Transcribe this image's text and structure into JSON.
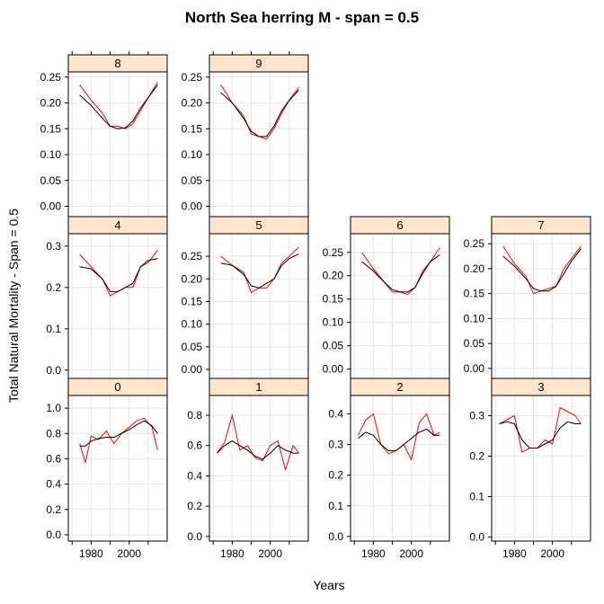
{
  "chart_data": {
    "type": "line",
    "title": "North Sea herring M - span = 0.5",
    "xlabel": "Years",
    "ylabel": "Total Natural Mortality - Span = 0.5",
    "x_ticks": [
      "1980",
      "2000"
    ],
    "grid": true,
    "colors": {
      "observed": "#ff0000",
      "smooth": "#000000",
      "strip": "#ffe5cc",
      "grid": "#e6e6e6"
    },
    "series_descriptions": [
      "observed (red)",
      "loess smooth (black)"
    ],
    "panels": [
      {
        "label": "8",
        "ylim": [
          -0.02,
          0.26
        ],
        "y_ticks": [
          "0.00",
          "0.05",
          "0.10",
          "0.15",
          "0.20",
          "0.25"
        ],
        "x": [
          1974,
          1980,
          1986,
          1990,
          1994,
          1998,
          2002,
          2006,
          2010,
          2015
        ],
        "observed": [
          0.235,
          0.205,
          0.18,
          0.155,
          0.155,
          0.15,
          0.16,
          0.185,
          0.21,
          0.24
        ],
        "smooth": [
          0.215,
          0.195,
          0.17,
          0.155,
          0.15,
          0.152,
          0.165,
          0.19,
          0.21,
          0.235
        ]
      },
      {
        "label": "9",
        "ylim": [
          -0.02,
          0.26
        ],
        "y_ticks": [
          "0.00",
          "0.05",
          "0.10",
          "0.15",
          "0.20",
          "0.25"
        ],
        "x": [
          1974,
          1980,
          1986,
          1990,
          1994,
          1998,
          2002,
          2006,
          2010,
          2015
        ],
        "observed": [
          0.235,
          0.2,
          0.175,
          0.14,
          0.135,
          0.13,
          0.15,
          0.18,
          0.205,
          0.23
        ],
        "smooth": [
          0.22,
          0.2,
          0.17,
          0.145,
          0.135,
          0.135,
          0.155,
          0.185,
          0.205,
          0.225
        ]
      },
      {
        "label": "4",
        "ylim": [
          -0.02,
          0.33
        ],
        "y_ticks": [
          "0.0",
          "0.1",
          "0.2",
          "0.3"
        ],
        "x": [
          1974,
          1980,
          1986,
          1990,
          1994,
          1998,
          2002,
          2006,
          2010,
          2015
        ],
        "observed": [
          0.28,
          0.25,
          0.22,
          0.18,
          0.19,
          0.2,
          0.2,
          0.25,
          0.26,
          0.29
        ],
        "smooth": [
          0.25,
          0.245,
          0.22,
          0.19,
          0.19,
          0.2,
          0.21,
          0.25,
          0.265,
          0.27
        ]
      },
      {
        "label": "5",
        "ylim": [
          -0.02,
          0.3
        ],
        "y_ticks": [
          "0.00",
          "0.05",
          "0.10",
          "0.15",
          "0.20",
          "0.25"
        ],
        "x": [
          1974,
          1980,
          1986,
          1990,
          1994,
          1998,
          2002,
          2006,
          2010,
          2015
        ],
        "observed": [
          0.25,
          0.23,
          0.215,
          0.17,
          0.18,
          0.18,
          0.2,
          0.235,
          0.25,
          0.27
        ],
        "smooth": [
          0.235,
          0.23,
          0.21,
          0.185,
          0.18,
          0.19,
          0.2,
          0.23,
          0.245,
          0.255
        ]
      },
      {
        "label": "6",
        "ylim": [
          -0.02,
          0.29
        ],
        "y_ticks": [
          "0.00",
          "0.05",
          "0.10",
          "0.15",
          "0.20",
          "0.25"
        ],
        "x": [
          1974,
          1980,
          1986,
          1990,
          1994,
          1998,
          2002,
          2006,
          2010,
          2015
        ],
        "observed": [
          0.25,
          0.215,
          0.185,
          0.165,
          0.165,
          0.16,
          0.175,
          0.21,
          0.23,
          0.26
        ],
        "smooth": [
          0.23,
          0.21,
          0.185,
          0.17,
          0.165,
          0.165,
          0.175,
          0.205,
          0.23,
          0.245
        ]
      },
      {
        "label": "7",
        "ylim": [
          -0.02,
          0.27
        ],
        "y_ticks": [
          "0.00",
          "0.05",
          "0.10",
          "0.15",
          "0.20",
          "0.25"
        ],
        "x": [
          1974,
          1980,
          1986,
          1990,
          1994,
          1998,
          2002,
          2006,
          2010,
          2015
        ],
        "observed": [
          0.245,
          0.21,
          0.185,
          0.15,
          0.155,
          0.16,
          0.165,
          0.2,
          0.22,
          0.245
        ],
        "smooth": [
          0.225,
          0.205,
          0.18,
          0.16,
          0.155,
          0.155,
          0.165,
          0.19,
          0.215,
          0.24
        ]
      },
      {
        "label": "0",
        "ylim": [
          -0.05,
          1.1
        ],
        "y_ticks": [
          "0.0",
          "0.2",
          "0.4",
          "0.6",
          "0.8",
          "1.0"
        ],
        "x": [
          1974,
          1977,
          1980,
          1984,
          1988,
          1992,
          1996,
          2000,
          2004,
          2008,
          2012,
          2015
        ],
        "observed": [
          0.72,
          0.57,
          0.78,
          0.75,
          0.82,
          0.72,
          0.8,
          0.85,
          0.9,
          0.92,
          0.85,
          0.67
        ],
        "smooth": [
          0.7,
          0.7,
          0.74,
          0.76,
          0.77,
          0.77,
          0.8,
          0.83,
          0.87,
          0.9,
          0.86,
          0.8
        ]
      },
      {
        "label": "1",
        "ylim": [
          -0.03,
          0.93
        ],
        "y_ticks": [
          "0.0",
          "0.2",
          "0.4",
          "0.6",
          "0.8"
        ],
        "x": [
          1972,
          1976,
          1980,
          1984,
          1988,
          1992,
          1996,
          2000,
          2004,
          2008,
          2012,
          2015
        ],
        "observed": [
          0.55,
          0.62,
          0.8,
          0.57,
          0.6,
          0.52,
          0.5,
          0.6,
          0.63,
          0.44,
          0.6,
          0.55
        ],
        "smooth": [
          0.55,
          0.6,
          0.63,
          0.6,
          0.57,
          0.53,
          0.51,
          0.55,
          0.6,
          0.57,
          0.55,
          0.55
        ]
      },
      {
        "label": "2",
        "ylim": [
          -0.015,
          0.46
        ],
        "y_ticks": [
          "0.0",
          "0.1",
          "0.2",
          "0.3",
          "0.4"
        ],
        "x": [
          1972,
          1976,
          1980,
          1984,
          1988,
          1992,
          1996,
          2000,
          2004,
          2008,
          2012,
          2015
        ],
        "observed": [
          0.33,
          0.38,
          0.4,
          0.3,
          0.27,
          0.28,
          0.3,
          0.25,
          0.37,
          0.4,
          0.33,
          0.34
        ],
        "smooth": [
          0.32,
          0.34,
          0.33,
          0.3,
          0.28,
          0.28,
          0.3,
          0.32,
          0.34,
          0.35,
          0.33,
          0.33
        ]
      },
      {
        "label": "3",
        "ylim": [
          -0.01,
          0.35
        ],
        "y_ticks": [
          "0.0",
          "0.1",
          "0.2",
          "0.3"
        ],
        "x": [
          1972,
          1976,
          1980,
          1984,
          1988,
          1992,
          1996,
          2000,
          2004,
          2008,
          2012,
          2015
        ],
        "observed": [
          0.28,
          0.29,
          0.3,
          0.21,
          0.22,
          0.22,
          0.24,
          0.23,
          0.32,
          0.31,
          0.3,
          0.28
        ],
        "smooth": [
          0.28,
          0.285,
          0.28,
          0.24,
          0.22,
          0.22,
          0.23,
          0.24,
          0.27,
          0.285,
          0.28,
          0.28
        ]
      }
    ]
  }
}
